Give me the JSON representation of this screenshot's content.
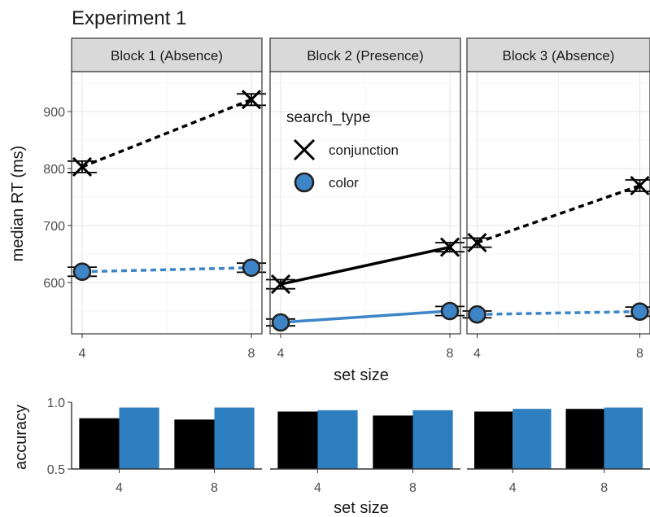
{
  "chart_data": [
    {
      "type": "line",
      "title": "Experiment 1",
      "xlabel": "set size",
      "ylabel": "median RT (ms)",
      "x": [
        4,
        8
      ],
      "xlim": [
        3.75,
        8.25
      ],
      "ylim": [
        510,
        970
      ],
      "yticks": [
        600,
        700,
        800,
        900
      ],
      "legend": {
        "title": "search_type",
        "entries": [
          {
            "label": "conjunction",
            "color": "#000000",
            "marker": "x"
          },
          {
            "label": "color",
            "color": "#3d85c6",
            "marker": "circle"
          }
        ],
        "position": "inside panel 2, top-left"
      },
      "panels": [
        {
          "label": "Block 1 (Absence)",
          "series": [
            {
              "name": "conjunction",
              "values": [
                803,
                921
              ],
              "errors": [
                10,
                10
              ],
              "linestyle": "dashed"
            },
            {
              "name": "color",
              "values": [
                619,
                626
              ],
              "errors": [
                8,
                8
              ],
              "linestyle": "dashed"
            }
          ]
        },
        {
          "label": "Block 2 (Presence)",
          "series": [
            {
              "name": "conjunction",
              "values": [
                597,
                662
              ],
              "errors": [
                8,
                8
              ],
              "linestyle": "solid"
            },
            {
              "name": "color",
              "values": [
                530,
                550
              ],
              "errors": [
                6,
                8
              ],
              "linestyle": "solid"
            }
          ]
        },
        {
          "label": "Block 3 (Absence)",
          "series": [
            {
              "name": "conjunction",
              "values": [
                670,
                770
              ],
              "errors": [
                8,
                10
              ],
              "linestyle": "dashed"
            },
            {
              "name": "color",
              "values": [
                544,
                549
              ],
              "errors": [
                6,
                8
              ],
              "linestyle": "dashed"
            }
          ]
        }
      ]
    },
    {
      "type": "bar",
      "xlabel": "set size",
      "ylabel": "accuracy",
      "categories": [
        4,
        8
      ],
      "ylim": [
        0.5,
        1.0
      ],
      "yticks": [
        0.5,
        1.0
      ],
      "panels": [
        {
          "label": "Block 1 (Absence)",
          "series": [
            {
              "name": "conjunction",
              "values": [
                0.88,
                0.87
              ]
            },
            {
              "name": "color",
              "values": [
                0.96,
                0.96
              ]
            }
          ]
        },
        {
          "label": "Block 2 (Presence)",
          "series": [
            {
              "name": "conjunction",
              "values": [
                0.93,
                0.9
              ]
            },
            {
              "name": "color",
              "values": [
                0.94,
                0.94
              ]
            }
          ]
        },
        {
          "label": "Block 3 (Absence)",
          "series": [
            {
              "name": "conjunction",
              "values": [
                0.93,
                0.95
              ]
            },
            {
              "name": "color",
              "values": [
                0.95,
                0.96
              ]
            }
          ]
        }
      ]
    }
  ]
}
